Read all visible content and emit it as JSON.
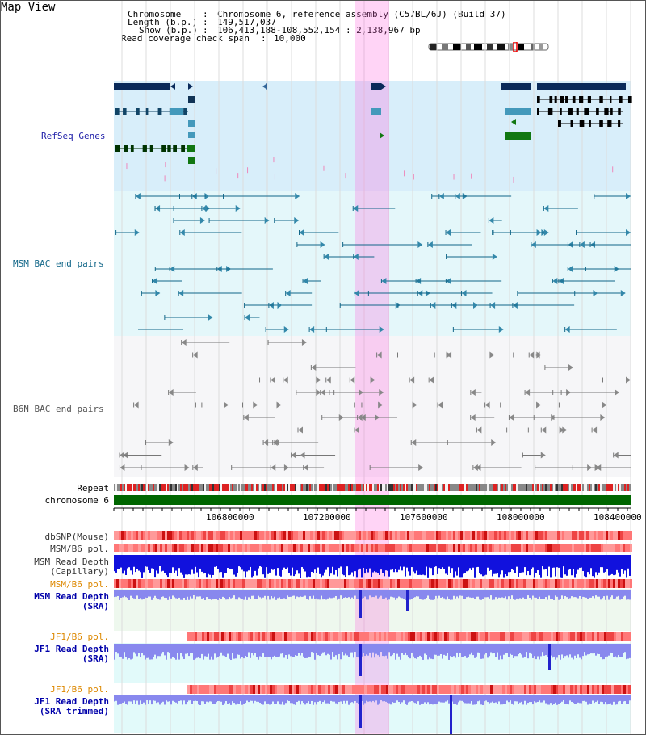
{
  "view_title": "Map View",
  "info": {
    "chromosome_key": "Chromosome",
    "chromosome_val": "Chromosome 6, reference assembly (C57BL/6J) (Build 37)",
    "length_key": "Length (b.p.)",
    "length_val": "149,517,037",
    "show_key": "Show (b.p.)",
    "show_val": "106,413,188-108,552,154 : 2,138,967 bp",
    "coverage_key": "Read coverage check span",
    "coverage_val": "10,000"
  },
  "tracks": {
    "refseq": "RefSeq Genes",
    "msm_bac": "MSM BAC end pairs",
    "b6n_bac": "B6N BAC end pairs",
    "repeat": "Repeat",
    "chromosome": "chromosome 6",
    "dbsnp": "dbSNP(Mouse)",
    "msm_b6_pol_1": "MSM/B6 pol.",
    "msm_depth_cap_1": "MSM Read Depth",
    "msm_depth_cap_2": "(Capillary)",
    "msm_b6_pol_2": "MSM/B6 pol.",
    "msm_depth_sra_1": "MSM Read Depth",
    "msm_depth_sra_2": "(SRA)",
    "jf1_b6_pol_1": "JF1/B6 pol.",
    "jf1_depth_sra_1": "JF1 Read Depth",
    "jf1_depth_sra_2": "(SRA)",
    "jf1_b6_pol_2": "JF1/B6 pol.",
    "jf1_depth_trim_1": "JF1 Read Depth",
    "jf1_depth_trim_2": "(SRA trimmed)"
  },
  "axis": {
    "ticks": [
      "106800000",
      "107200000",
      "107600000",
      "108000000",
      "108400000"
    ]
  },
  "colors": {
    "refseq_label": "#2222aa",
    "msm_label": "#116688",
    "b6n_label": "#555555",
    "pol_orange": "#dd8800",
    "depth_blue": "#0000aa",
    "highlight": "#ff66dd"
  }
}
